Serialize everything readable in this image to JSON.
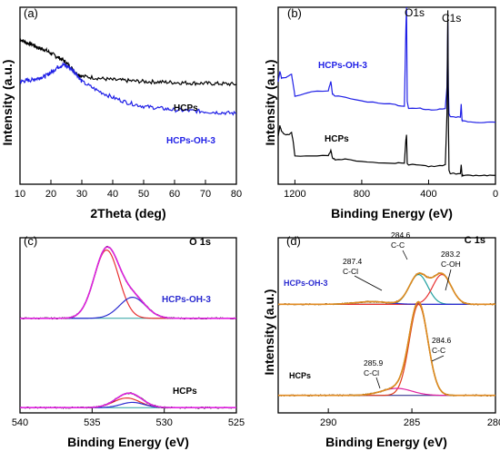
{
  "chart_data": [
    {
      "type": "line",
      "panel_label": "(a)",
      "xlabel": "2Theta (deg)",
      "ylabel": "Intensity (a.u.)",
      "xlim": [
        10,
        80
      ],
      "xticks": [
        10,
        20,
        30,
        40,
        50,
        60,
        70,
        80
      ],
      "ylim": [
        0,
        1
      ],
      "series": [
        {
          "name": "HCPs",
          "color": "#000000",
          "x": [
            10,
            12,
            14,
            16,
            18,
            20,
            22,
            24,
            26,
            28,
            30,
            35,
            40,
            45,
            50,
            55,
            60,
            65,
            70,
            75,
            80
          ],
          "y": [
            0.82,
            0.8,
            0.79,
            0.77,
            0.76,
            0.74,
            0.72,
            0.7,
            0.67,
            0.63,
            0.61,
            0.6,
            0.59,
            0.585,
            0.58,
            0.578,
            0.575,
            0.572,
            0.57,
            0.568,
            0.565
          ]
        },
        {
          "name": "HCPs-OH-3",
          "color": "#1f1fe6",
          "x": [
            10,
            12,
            14,
            16,
            18,
            20,
            22,
            24,
            26,
            28,
            30,
            35,
            40,
            45,
            50,
            55,
            60,
            65,
            70,
            75,
            80
          ],
          "y": [
            0.58,
            0.585,
            0.59,
            0.6,
            0.61,
            0.63,
            0.66,
            0.675,
            0.66,
            0.63,
            0.58,
            0.53,
            0.49,
            0.46,
            0.44,
            0.43,
            0.42,
            0.415,
            0.41,
            0.405,
            0.4
          ]
        }
      ]
    },
    {
      "type": "line",
      "panel_label": "(b)",
      "xlabel": "Binding Energy (eV)",
      "ylabel": "Intensity (a.u.)",
      "xlim": [
        1300,
        0
      ],
      "xticks": [
        1200,
        800,
        400,
        0
      ],
      "ylim": [
        0,
        1
      ],
      "annotations": [
        "O1s",
        "C1s"
      ],
      "series": [
        {
          "name": "HCPs-OH-3",
          "color": "#1f1fe6",
          "x": [
            1300,
            1290,
            1280,
            1260,
            1240,
            1220,
            1210,
            1200,
            1100,
            1000,
            985,
            975,
            960,
            900,
            800,
            700,
            600,
            545,
            536,
            532,
            528,
            520,
            450,
            400,
            350,
            300,
            290,
            285,
            282,
            278,
            270,
            250,
            210,
            205,
            200,
            195,
            150,
            100,
            50,
            0
          ],
          "y": [
            0.58,
            0.64,
            0.6,
            0.6,
            0.61,
            0.62,
            0.56,
            0.5,
            0.52,
            0.53,
            0.58,
            0.51,
            0.5,
            0.49,
            0.47,
            0.46,
            0.45,
            0.44,
            0.88,
            1.0,
            0.47,
            0.43,
            0.43,
            0.42,
            0.42,
            0.43,
            0.55,
            0.92,
            0.55,
            0.4,
            0.38,
            0.38,
            0.38,
            0.45,
            0.36,
            0.36,
            0.35,
            0.35,
            0.35,
            0.35
          ]
        },
        {
          "name": "HCPs",
          "color": "#000000",
          "x": [
            1300,
            1290,
            1280,
            1260,
            1240,
            1220,
            1210,
            1200,
            1100,
            1000,
            985,
            975,
            960,
            900,
            800,
            700,
            600,
            545,
            536,
            532,
            528,
            520,
            450,
            400,
            350,
            300,
            290,
            285,
            282,
            278,
            270,
            250,
            210,
            205,
            200,
            195,
            150,
            100,
            50,
            0
          ],
          "y": [
            0.27,
            0.33,
            0.3,
            0.28,
            0.28,
            0.29,
            0.24,
            0.16,
            0.16,
            0.16,
            0.19,
            0.15,
            0.14,
            0.14,
            0.13,
            0.12,
            0.12,
            0.12,
            0.25,
            0.28,
            0.12,
            0.11,
            0.11,
            0.1,
            0.1,
            0.11,
            0.4,
            0.98,
            0.4,
            0.08,
            0.06,
            0.06,
            0.06,
            0.11,
            0.05,
            0.05,
            0.05,
            0.05,
            0.05,
            0.05
          ]
        }
      ]
    },
    {
      "type": "line",
      "panel_label": "(c)",
      "title": "O 1s",
      "xlabel": "Binding Energy (eV)",
      "xlim": [
        540,
        525
      ],
      "xticks": [
        540,
        535,
        530,
        525
      ],
      "ylim": [
        0,
        1
      ],
      "series_labels": [
        "HCPs-OH-3",
        "HCPs"
      ],
      "peaks": [
        {
          "group": "HCPs-OH-3",
          "center": 534.0,
          "height": 0.39,
          "width": 0.85,
          "color": "#e83030"
        },
        {
          "group": "HCPs-OH-3",
          "center": 532.2,
          "height": 0.12,
          "width": 0.9,
          "color": "#2a2ad0"
        },
        {
          "group": "HCPs",
          "center": 532.6,
          "height": 0.055,
          "width": 0.9,
          "color": "#e83030"
        },
        {
          "group": "HCPs",
          "center": 532.2,
          "height": 0.03,
          "width": 0.8,
          "color": "#2a2ad0"
        }
      ],
      "envelope_colors": {
        "fit": "#e020e0",
        "raw": "#000000",
        "sum": "#2aa02a",
        "baseline": "#2aa0a0"
      },
      "baselines": {
        "HCPs-OH-3": 0.54,
        "HCPs": 0.03
      }
    },
    {
      "type": "line",
      "panel_label": "(d)",
      "title": "C 1s",
      "xlabel": "Binding Energy (eV)",
      "ylabel": "Intensity (a.u.)",
      "xlim": [
        293,
        280
      ],
      "xticks": [
        290,
        285,
        280
      ],
      "ylim": [
        0,
        1
      ],
      "series_labels": [
        "HCPs-OH-3",
        "HCPs"
      ],
      "annotations": [
        {
          "value": "287.4",
          "bond": "C-Cl"
        },
        {
          "value": "284.6",
          "bond": "C-C"
        },
        {
          "value": "283.2",
          "bond": "C-OH"
        },
        {
          "value": "284.6",
          "bond": "C-C"
        },
        {
          "value": "285.9",
          "bond": "C-Cl"
        }
      ],
      "peaks": [
        {
          "group": "HCPs-OH-3",
          "center": 284.6,
          "height": 0.17,
          "width": 0.55,
          "color": "#20a0a0"
        },
        {
          "group": "HCPs-OH-3",
          "center": 283.2,
          "height": 0.17,
          "width": 0.55,
          "color": "#e83030"
        },
        {
          "group": "HCPs-OH-3",
          "center": 287.4,
          "height": 0.015,
          "width": 1.0,
          "color": "#2a2ad0"
        },
        {
          "group": "HCPs",
          "center": 284.6,
          "height": 0.52,
          "width": 0.55,
          "color": "#e03a1a"
        },
        {
          "group": "HCPs",
          "center": 285.9,
          "height": 0.04,
          "width": 0.9,
          "color": "#e020a0"
        }
      ],
      "envelope_colors": {
        "fit": "#e08a20",
        "raw": "#6b3a00",
        "sum": "#4a8a20",
        "baseline": "#1a1a80"
      },
      "baselines": {
        "HCPs-OH-3": 0.62,
        "HCPs": 0.1
      }
    }
  ]
}
